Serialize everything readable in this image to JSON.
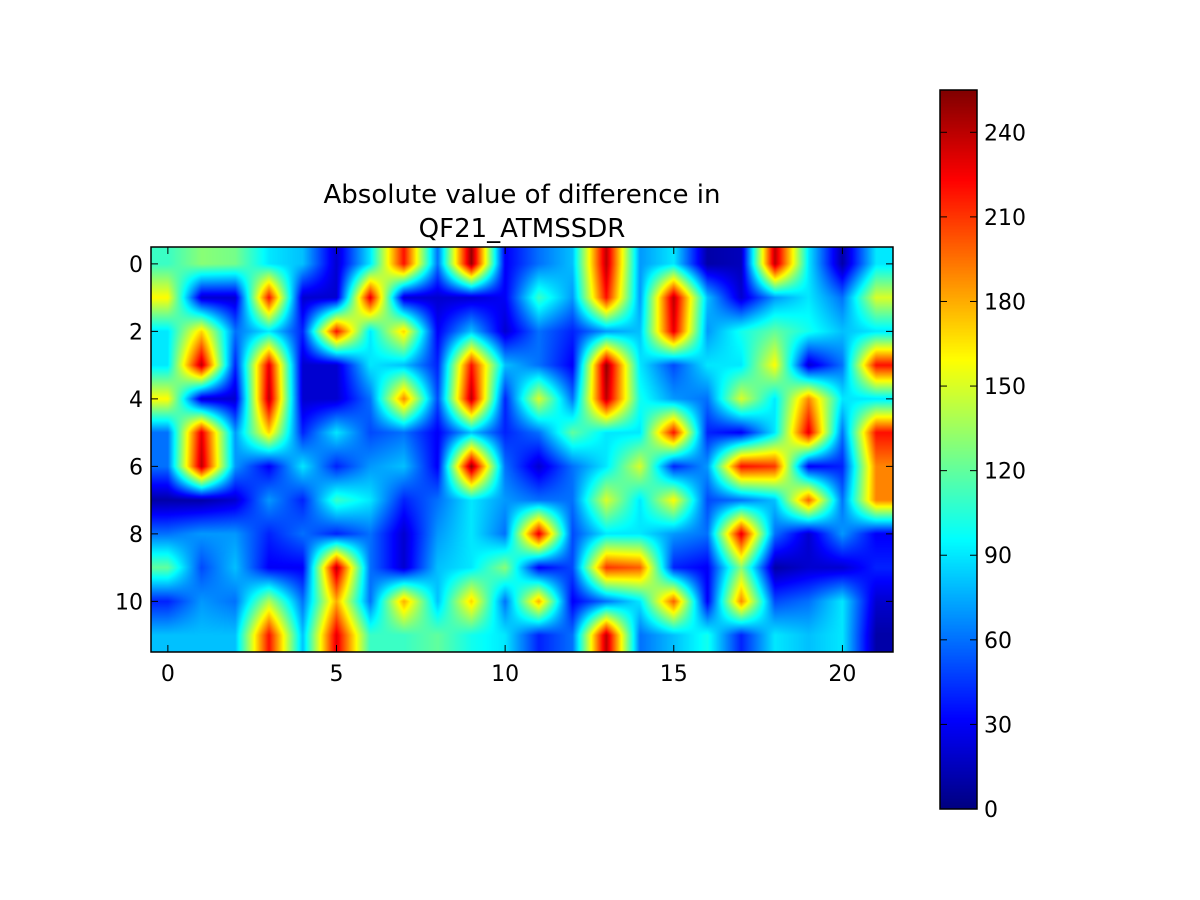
{
  "chart_data": {
    "type": "heatmap",
    "title_lines": [
      "Absolute value of difference in",
      "QF21_ATMSSDR"
    ],
    "colormap": "jet",
    "interpolation": "bilinear",
    "vmin": 0,
    "vmax": 255,
    "x_ticks": [
      0,
      5,
      10,
      15,
      20
    ],
    "x_tick_labels": [
      "0",
      "5",
      "10",
      "15",
      "20"
    ],
    "y_ticks": [
      0,
      2,
      4,
      6,
      8,
      10
    ],
    "y_tick_labels": [
      "0",
      "2",
      "4",
      "6",
      "8",
      "10"
    ],
    "colorbar_ticks": [
      0,
      30,
      60,
      90,
      120,
      150,
      180,
      210,
      240
    ],
    "colorbar_tick_labels": [
      "0",
      "30",
      "60",
      "90",
      "120",
      "150",
      "180",
      "210",
      "240"
    ],
    "rows": 12,
    "cols": 22,
    "values": [
      [
        110,
        130,
        125,
        90,
        80,
        20,
        90,
        220,
        60,
        250,
        30,
        60,
        80,
        240,
        70,
        90,
        10,
        15,
        240,
        90,
        10,
        90
      ],
      [
        160,
        20,
        20,
        220,
        20,
        20,
        230,
        20,
        20,
        20,
        30,
        110,
        70,
        220,
        70,
        240,
        80,
        20,
        70,
        90,
        60,
        150
      ],
      [
        90,
        170,
        60,
        90,
        40,
        220,
        90,
        170,
        30,
        80,
        20,
        60,
        40,
        70,
        80,
        230,
        70,
        100,
        120,
        100,
        80,
        90
      ],
      [
        90,
        240,
        40,
        230,
        20,
        20,
        90,
        80,
        40,
        220,
        80,
        60,
        30,
        250,
        90,
        50,
        90,
        90,
        160,
        20,
        60,
        220
      ],
      [
        160,
        20,
        20,
        240,
        20,
        20,
        60,
        190,
        50,
        240,
        40,
        150,
        60,
        240,
        100,
        70,
        60,
        150,
        90,
        190,
        90,
        90
      ],
      [
        60,
        230,
        70,
        170,
        40,
        90,
        50,
        60,
        30,
        80,
        40,
        60,
        120,
        90,
        90,
        220,
        40,
        30,
        90,
        230,
        60,
        220
      ],
      [
        60,
        240,
        70,
        30,
        90,
        40,
        70,
        80,
        30,
        250,
        60,
        20,
        60,
        90,
        150,
        40,
        70,
        220,
        210,
        30,
        40,
        190
      ],
      [
        10,
        10,
        20,
        70,
        40,
        110,
        90,
        40,
        60,
        90,
        70,
        60,
        60,
        150,
        90,
        160,
        50,
        60,
        80,
        200,
        60,
        190
      ],
      [
        60,
        70,
        70,
        40,
        60,
        40,
        60,
        20,
        70,
        90,
        60,
        230,
        50,
        90,
        90,
        70,
        60,
        230,
        60,
        20,
        70,
        30
      ],
      [
        120,
        50,
        80,
        30,
        30,
        240,
        60,
        20,
        80,
        90,
        130,
        30,
        50,
        210,
        200,
        40,
        30,
        130,
        10,
        20,
        20,
        40
      ],
      [
        40,
        70,
        60,
        140,
        60,
        180,
        60,
        180,
        80,
        170,
        60,
        180,
        30,
        60,
        90,
        200,
        30,
        190,
        50,
        60,
        90,
        20
      ],
      [
        80,
        80,
        80,
        220,
        80,
        230,
        110,
        110,
        120,
        100,
        90,
        40,
        60,
        240,
        60,
        80,
        100,
        40,
        90,
        80,
        90,
        10
      ]
    ]
  }
}
